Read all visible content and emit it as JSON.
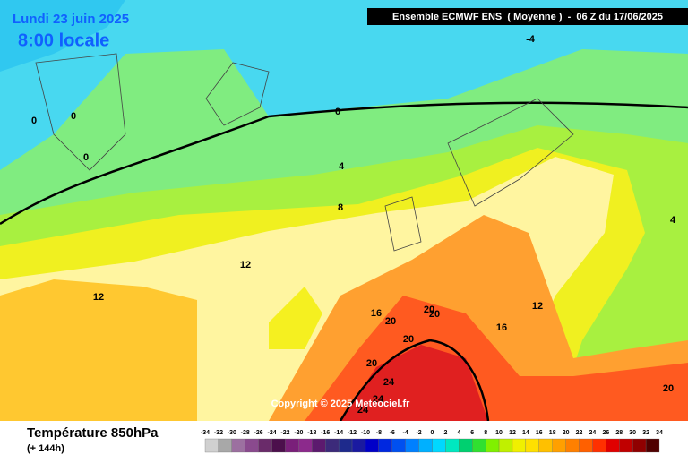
{
  "header": {
    "date": "Lundi 23 juin 2025",
    "time": "8:00 locale",
    "run": "Ensemble ECMWF ENS  ( Moyenne )  -  06 Z du 17/06/2025"
  },
  "copyright": "Copyright © 2025 Meteociel.fr",
  "footer": {
    "title": "Température 850hPa",
    "lead": "(+ 144h)"
  },
  "contour_labels": [
    -4,
    0,
    0,
    0,
    0,
    4,
    4,
    8,
    12,
    12,
    12,
    16,
    16,
    20,
    20,
    20,
    20,
    20,
    24,
    24,
    24,
    20
  ],
  "legend": {
    "labels": [
      -34,
      -32,
      -30,
      -28,
      -26,
      -24,
      -22,
      -20,
      -18,
      -16,
      -14,
      -12,
      -10,
      -8,
      -6,
      -4,
      -2,
      0,
      2,
      4,
      6,
      8,
      10,
      12,
      14,
      16,
      18,
      20,
      22,
      24,
      26,
      28,
      30,
      32,
      34
    ],
    "colors": [
      "#d0d0d0",
      "#a8a8a8",
      "#9c70a0",
      "#8a4a8e",
      "#6a2b6a",
      "#4c0f4c",
      "#7a1f7a",
      "#8c2a8c",
      "#5c1a6e",
      "#3c2a7a",
      "#1e2a8c",
      "#1a1aa0",
      "#0000c8",
      "#0028e0",
      "#0050f0",
      "#0080ff",
      "#00b0ff",
      "#00d8ff",
      "#00e8c0",
      "#00d070",
      "#30e030",
      "#80f000",
      "#c0f000",
      "#f0f000",
      "#ffe000",
      "#ffc000",
      "#ffa000",
      "#ff8000",
      "#ff6000",
      "#ff3000",
      "#e00000",
      "#c00000",
      "#900000",
      "#500000"
    ]
  }
}
